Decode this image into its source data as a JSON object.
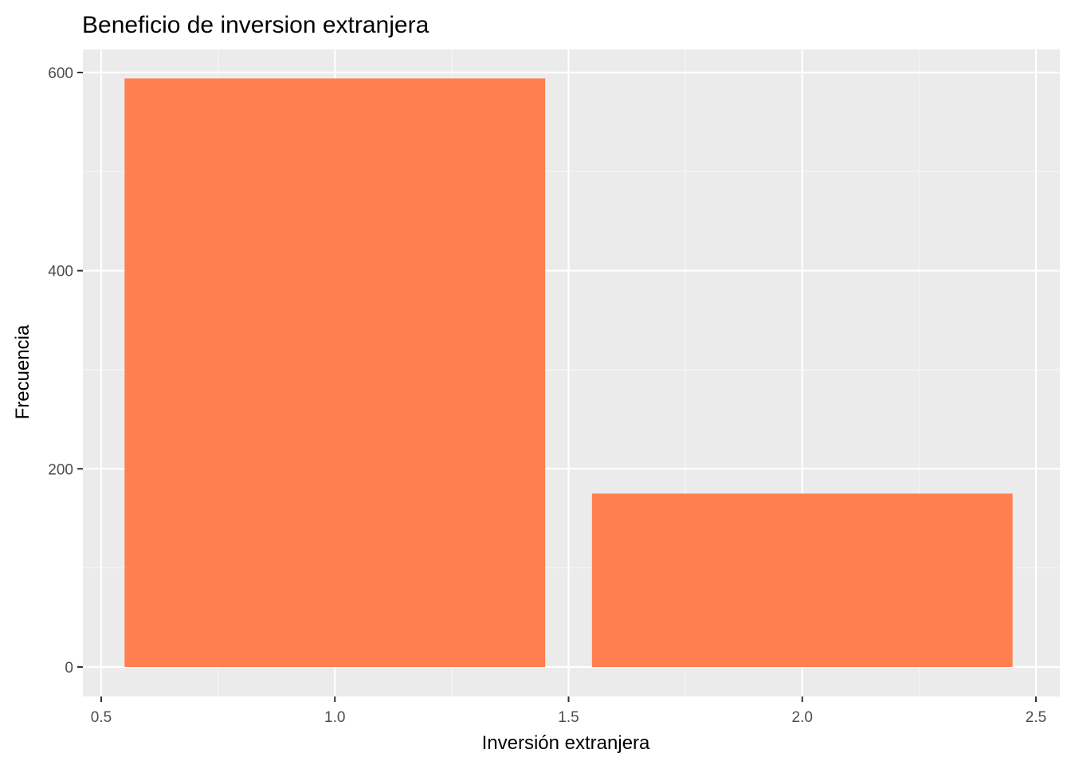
{
  "chart_data": {
    "type": "bar",
    "title": "Beneficio de inversion extranjera",
    "xlabel": "Inversión extranjera",
    "ylabel": "Frecuencia",
    "xlim": [
      0.5,
      2.5
    ],
    "ylim": [
      0,
      600
    ],
    "x_ticks": [
      0.5,
      1.0,
      1.5,
      2.0,
      2.5
    ],
    "x_tick_labels": [
      "0.5",
      "1.0",
      "1.5",
      "2.0",
      "2.5"
    ],
    "y_ticks": [
      0,
      200,
      400,
      600
    ],
    "y_tick_labels": [
      "0",
      "200",
      "400",
      "600"
    ],
    "bar_width": 0.9,
    "bars": [
      {
        "x": 1,
        "value": 594
      },
      {
        "x": 2,
        "value": 175
      }
    ],
    "grid": true,
    "colors": {
      "bar_fill": "#FF7F50",
      "panel_background": "#EBEBEB",
      "grid_major": "#FFFFFF",
      "grid_minor": "#F5F5F5"
    }
  }
}
